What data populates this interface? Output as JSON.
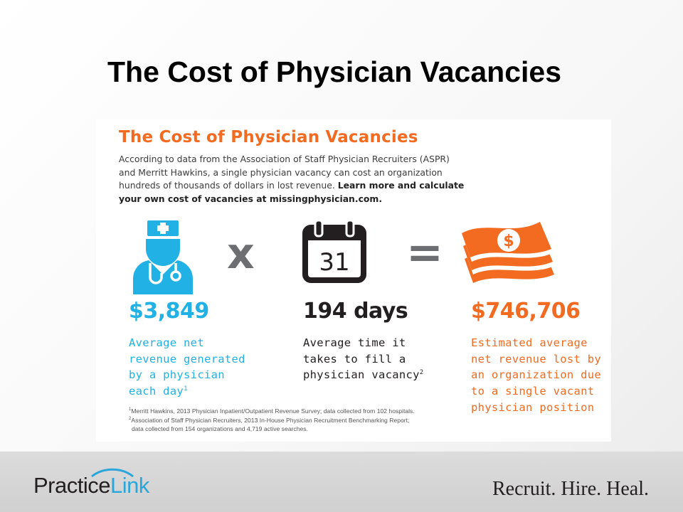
{
  "slide": {
    "title": "The Cost of Physician Vacancies"
  },
  "infographic": {
    "heading": "The Cost of Physician Vacancies",
    "intro": "According to data from the Association of Staff Physician Recruiters (ASPR) and Merritt Hawkins, a single physician vacancy can cost an organization hundreds of thousands of dollars in lost revenue.",
    "intro_bold": "Learn more and calculate your own cost of vacancies at missingphysician.com.",
    "multiply_sign": "x",
    "equals_sign": "=",
    "calendar_day": "31",
    "stats": [
      {
        "value": "$3,849",
        "desc_lines": [
          "Average net",
          "revenue generated",
          "by a physician",
          "each day"
        ],
        "footnote_mark": "1",
        "color": "#22b1e4"
      },
      {
        "value": "194 days",
        "desc_lines": [
          "Average time it",
          "takes to fill a",
          "physician vacancy"
        ],
        "footnote_mark": "2",
        "color": "#231f20"
      },
      {
        "value": "$746,706",
        "desc_lines": [
          "Estimated average",
          "net revenue lost by",
          "an organization due",
          "to a single vacant",
          "physician position"
        ],
        "footnote_mark": "",
        "color": "#f26b21"
      }
    ],
    "footnotes": [
      {
        "mark": "1",
        "text": "Merritt Hawkins, 2013 Physician Inpatient/Outpatient Revenue Survey; data collected from 102 hospitals."
      },
      {
        "mark": "2",
        "text": "Association of Staff Physician Recruiters, 2013 In-House Physician Recruitment Benchmarking Report;"
      },
      {
        "mark": "",
        "text": "data collected from 154 organizations and 4,719 active searches."
      }
    ],
    "icons": [
      "doctor-icon",
      "calendar-icon",
      "money-stack-icon"
    ]
  },
  "footer": {
    "logo_practice": "Practice",
    "logo_link": "Link",
    "tagline": "Recruit. Hire. Heal."
  }
}
